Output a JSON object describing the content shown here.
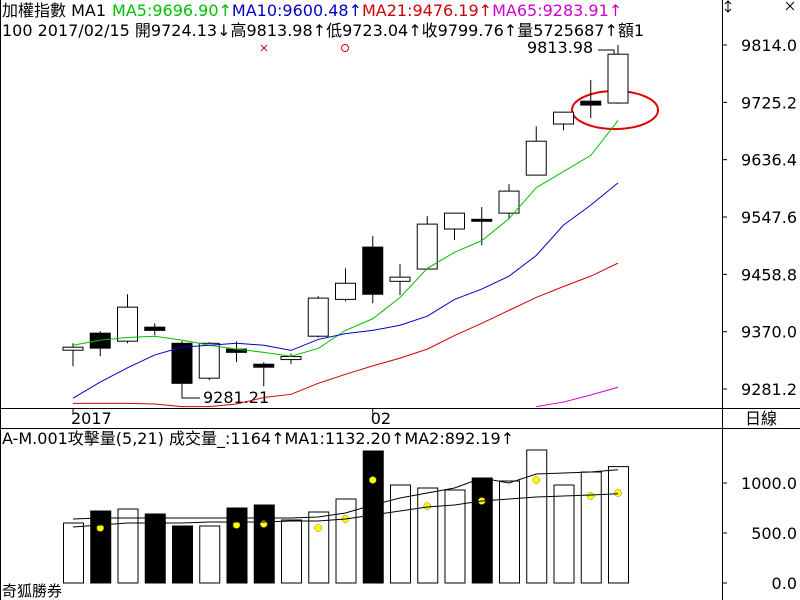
{
  "chart_data": [
    {
      "type": "candlestick",
      "title": "加權指數 MA1",
      "info_line": "100 2017/02/15 開9724.13↓高9813.98↑低9723.04↑收9799.76↑量5725687↑額1",
      "categories": [
        "2017",
        null,
        null,
        null,
        null,
        null,
        null,
        null,
        null,
        null,
        null,
        "02",
        null,
        null,
        null,
        null,
        null,
        null,
        null,
        null,
        null
      ],
      "period": "日線",
      "open": [
        9341.3,
        9367.7,
        9355.3,
        9377,
        9352,
        9298,
        9343,
        9319.6,
        9326.8,
        9363,
        9420,
        9501,
        9448,
        9467,
        9529,
        9544,
        9553.6,
        9612.5,
        9691.6,
        9727,
        9724.13
      ],
      "high": [
        9352,
        9370.8,
        9428,
        9383,
        9355.3,
        9353.7,
        9355,
        9322.7,
        9336,
        9425,
        9468,
        9518,
        9474.6,
        9549,
        9553.6,
        9563,
        9598.6,
        9688,
        9710,
        9760,
        9813.98
      ],
      "low": [
        9316.5,
        9332,
        9352,
        9364.6,
        9281.21,
        9294.9,
        9323,
        9285.5,
        9320,
        9361,
        9417,
        9414,
        9426.6,
        9467,
        9512,
        9504,
        9544,
        9612.5,
        9682,
        9701,
        9723.04
      ],
      "close": [
        9346,
        9344.5,
        9408,
        9372,
        9290,
        9352,
        9338,
        9315,
        9331.5,
        9422,
        9445,
        9428,
        9454.5,
        9536.6,
        9553.6,
        9541,
        9587.7,
        9665,
        9710,
        9721,
        9799.76
      ],
      "up_color": "#ffffff",
      "down_color": "#000000",
      "series": [
        {
          "name": "MA5:9696.90↑",
          "color": "#00c000",
          "values": [
            9349,
            9357,
            9361,
            9363,
            9357,
            9349,
            9343,
            9338,
            9332,
            9344,
            9372,
            9390,
            9423,
            9468,
            9493,
            9511,
            9545,
            9593,
            9618,
            9643,
            9696.9
          ]
        },
        {
          "name": "MA10:9600.48↑",
          "color": "#0000c8",
          "values": [
            9267,
            9292,
            9314,
            9334,
            9346,
            9349,
            9352,
            9349,
            9341,
            9358,
            9367,
            9372,
            9380,
            9394,
            9420,
            9436,
            9456,
            9488,
            9535,
            9566,
            9600.48
          ]
        },
        {
          "name": "MA21:9476.19↑",
          "color": "#d00000",
          "values": [
            9259,
            9259,
            9259,
            9258,
            9254,
            9254,
            9258,
            9268,
            9273,
            9290,
            9304,
            9317,
            9329,
            9343,
            9364,
            9383,
            9403,
            9423,
            9440,
            9456,
            9476.19
          ]
        },
        {
          "name": "MA65:9283.91↑",
          "color": "#d000d0",
          "values": [
            null,
            null,
            null,
            null,
            null,
            null,
            null,
            null,
            null,
            null,
            null,
            null,
            null,
            null,
            null,
            null,
            null,
            9254,
            9261,
            9272,
            9283.91
          ]
        }
      ],
      "annotations": [
        "9281.21",
        "9813.98"
      ],
      "ylim": [
        9251.8,
        9883.7
      ],
      "yticks": [
        {
          "value": 9814,
          "label": "9814.0"
        },
        {
          "value": 9725.2,
          "label": "9725.2"
        },
        {
          "value": 9636.4,
          "label": "9636.4"
        },
        {
          "value": 9547.6,
          "label": "9547.6"
        },
        {
          "value": 9458.8,
          "label": "9458.8"
        },
        {
          "value": 9370,
          "label": "9370.0"
        },
        {
          "value": 9281.2,
          "label": "9281.2"
        }
      ]
    },
    {
      "type": "bar",
      "title": "A-M.001攻擊量(5,21) 成交量_:1164↑MA1:1132.20↑MA2:892.19↑",
      "watermark": "奇狐勝券",
      "values": [
        600,
        720,
        740,
        690,
        570,
        570,
        750,
        780,
        630,
        710,
        840,
        1320,
        980,
        950,
        930,
        1050,
        1020,
        1330,
        980,
        1110,
        1164
      ],
      "colors": [
        "#ffffff",
        "#000000",
        "#ffffff",
        "#000000",
        "#000000",
        "#ffffff",
        "#000000",
        "#000000",
        "#ffffff",
        "#ffffff",
        "#ffffff",
        "#000000",
        "#ffffff",
        "#ffffff",
        "#ffffff",
        "#000000",
        "#ffffff",
        "#ffffff",
        "#ffffff",
        "#ffffff",
        "#ffffff"
      ],
      "series": [
        {
          "type": "points",
          "color": "#ffff00",
          "values": [
            null,
            550,
            null,
            null,
            null,
            null,
            580,
            590,
            null,
            550,
            640,
            1030,
            null,
            770,
            null,
            820,
            null,
            1030,
            null,
            870,
            900
          ]
        },
        {
          "type": "line",
          "color": "#000000",
          "values": [
            640,
            650,
            650,
            650,
            650,
            650,
            650,
            650,
            650,
            660,
            700,
            780,
            850,
            900,
            950,
            1050,
            1000,
            1090,
            1100,
            1110,
            1132.2
          ]
        },
        {
          "type": "line",
          "color": "#000000",
          "values": [
            560,
            580,
            600,
            600,
            600,
            610,
            610,
            610,
            620,
            620,
            640,
            680,
            720,
            760,
            780,
            820,
            840,
            860,
            870,
            880,
            892.19
          ]
        }
      ],
      "ylim": [
        -170,
        1550
      ],
      "yticks": [
        {
          "value": 1000,
          "label": "1000.0"
        },
        {
          "value": 500,
          "label": "500.0"
        },
        {
          "value": 0,
          "label": "0.0"
        }
      ]
    }
  ]
}
